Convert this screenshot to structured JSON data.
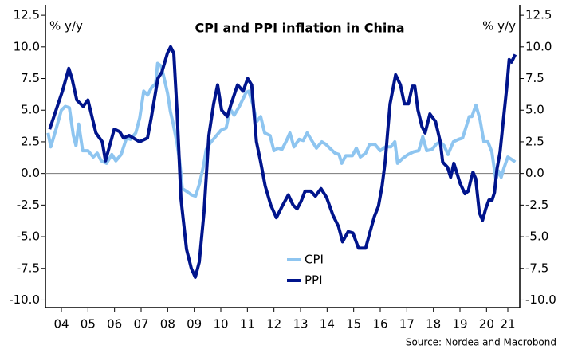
{
  "chart_data": {
    "type": "line",
    "title": "CPI and PPI inflation in China",
    "y_label": "% y/y",
    "y2_label": "% y/y",
    "source": "Source: Nordea and Macrobond",
    "xlim": [
      2003.9,
      2021.75
    ],
    "xticks": [
      {
        "value": 2004.5,
        "label": "04"
      },
      {
        "value": 2005.5,
        "label": "05"
      },
      {
        "value": 2006.5,
        "label": "06"
      },
      {
        "value": 2007.5,
        "label": "07"
      },
      {
        "value": 2008.5,
        "label": "08"
      },
      {
        "value": 2009.5,
        "label": "09"
      },
      {
        "value": 2010.5,
        "label": "10"
      },
      {
        "value": 2011.5,
        "label": "11"
      },
      {
        "value": 2012.5,
        "label": "12"
      },
      {
        "value": 2013.5,
        "label": "13"
      },
      {
        "value": 2014.5,
        "label": "14"
      },
      {
        "value": 2015.5,
        "label": "15"
      },
      {
        "value": 2016.5,
        "label": "16"
      },
      {
        "value": 2017.5,
        "label": "17"
      },
      {
        "value": 2018.5,
        "label": "18"
      },
      {
        "value": 2019.5,
        "label": "19"
      },
      {
        "value": 2020.5,
        "label": "20"
      },
      {
        "value": 2021.3,
        "label": "21"
      }
    ],
    "ylim": [
      -10.6,
      13.2
    ],
    "yticks": [
      12.5,
      {
        "value": 10,
        "label": "10.0"
      },
      7.5,
      {
        "value": 5,
        "label": "5.0"
      },
      2.5,
      {
        "value": 0,
        "label": "0.0"
      },
      -2.5,
      {
        "value": -5,
        "label": "-5.0"
      },
      -7.5,
      {
        "value": -10,
        "label": "-10.0"
      }
    ],
    "y2lim": [
      -10.6,
      13.2
    ],
    "y2ticks": [
      12.5,
      {
        "value": 10,
        "label": "10.0"
      },
      7.5,
      {
        "value": 5,
        "label": "5.0"
      },
      2.5,
      {
        "value": 0,
        "label": "0.0"
      },
      -2.5,
      {
        "value": -5,
        "label": "-5.0"
      },
      -7.5,
      {
        "value": -10,
        "label": "-10.0"
      }
    ],
    "series": [
      {
        "name": "CPI",
        "color": "#8ec5f0",
        "x": [
          2004.0,
          2004.1,
          2004.3,
          2004.5,
          2004.65,
          2004.8,
          2004.95,
          2005.05,
          2005.15,
          2005.3,
          2005.5,
          2005.7,
          2005.85,
          2006.0,
          2006.2,
          2006.4,
          2006.55,
          2006.75,
          2006.95,
          2007.1,
          2007.3,
          2007.45,
          2007.6,
          2007.75,
          2007.9,
          2008.05,
          2008.12,
          2008.25,
          2008.35,
          2008.5,
          2008.6,
          2008.7,
          2008.85,
          2008.95,
          2009.05,
          2009.2,
          2009.4,
          2009.55,
          2009.7,
          2009.85,
          2009.95,
          2010.1,
          2010.3,
          2010.5,
          2010.7,
          2010.85,
          2011.0,
          2011.2,
          2011.45,
          2011.55,
          2011.7,
          2011.85,
          2012.0,
          2012.15,
          2012.35,
          2012.5,
          2012.65,
          2012.8,
          2012.95,
          2013.1,
          2013.25,
          2013.45,
          2013.6,
          2013.75,
          2013.95,
          2014.1,
          2014.3,
          2014.45,
          2014.6,
          2014.8,
          2014.95,
          2015.05,
          2015.2,
          2015.45,
          2015.6,
          2015.75,
          2015.95,
          2016.1,
          2016.3,
          2016.5,
          2016.7,
          2016.9,
          2017.05,
          2017.15,
          2017.35,
          2017.55,
          2017.75,
          2017.95,
          2018.1,
          2018.25,
          2018.45,
          2018.6,
          2018.75,
          2018.9,
          2019.05,
          2019.25,
          2019.45,
          2019.6,
          2019.75,
          2019.85,
          2019.95,
          2020.1,
          2020.25,
          2020.4,
          2020.55,
          2020.7,
          2020.85,
          2020.95,
          2021.05,
          2021.15,
          2021.3,
          2021.45,
          2021.58
        ],
        "values": [
          3.2,
          2.1,
          3.5,
          5.0,
          5.3,
          5.2,
          3.0,
          2.2,
          3.9,
          1.8,
          1.8,
          1.3,
          1.6,
          1.0,
          0.8,
          1.5,
          1.0,
          1.5,
          2.8,
          2.7,
          3.2,
          4.4,
          6.5,
          6.2,
          6.8,
          7.1,
          8.7,
          8.5,
          7.7,
          6.3,
          4.9,
          4.0,
          2.4,
          1.0,
          -1.2,
          -1.4,
          -1.7,
          -1.8,
          -0.8,
          0.6,
          1.9,
          2.4,
          2.9,
          3.4,
          3.6,
          5.1,
          4.6,
          5.3,
          6.4,
          6.5,
          5.5,
          4.1,
          4.5,
          3.2,
          3.0,
          1.8,
          2.0,
          1.9,
          2.5,
          3.2,
          2.1,
          2.7,
          2.6,
          3.2,
          2.5,
          2.0,
          2.5,
          2.3,
          2.0,
          1.6,
          1.5,
          0.8,
          1.4,
          1.4,
          2.0,
          1.3,
          1.6,
          2.3,
          2.3,
          1.8,
          2.1,
          2.1,
          2.5,
          0.8,
          1.2,
          1.5,
          1.7,
          1.8,
          2.9,
          1.8,
          1.9,
          2.3,
          2.5,
          2.2,
          1.5,
          2.5,
          2.7,
          2.8,
          3.8,
          4.5,
          4.5,
          5.4,
          4.3,
          2.5,
          2.5,
          1.7,
          -0.5,
          0.2,
          -0.3,
          0.4,
          1.3,
          1.1,
          0.9
        ]
      },
      {
        "name": "PPI",
        "color": "#00148c",
        "x": [
          2004.06,
          2004.3,
          2004.54,
          2004.78,
          2004.9,
          2005.08,
          2005.32,
          2005.5,
          2005.8,
          2006.04,
          2006.16,
          2006.49,
          2006.69,
          2006.84,
          2007.05,
          2007.44,
          2007.74,
          2007.89,
          2008.13,
          2008.28,
          2008.49,
          2008.61,
          2008.73,
          2008.85,
          2009.0,
          2009.21,
          2009.39,
          2009.54,
          2009.69,
          2009.87,
          2010.05,
          2010.23,
          2010.38,
          2010.53,
          2010.74,
          2010.89,
          2011.13,
          2011.34,
          2011.51,
          2011.66,
          2011.84,
          2011.99,
          2012.17,
          2012.38,
          2012.59,
          2012.83,
          2013.04,
          2013.22,
          2013.37,
          2013.52,
          2013.67,
          2013.88,
          2014.06,
          2014.27,
          2014.48,
          2014.72,
          2014.93,
          2015.08,
          2015.29,
          2015.47,
          2015.68,
          2015.95,
          2016.13,
          2016.28,
          2016.43,
          2016.57,
          2016.69,
          2016.78,
          2016.87,
          2017.08,
          2017.26,
          2017.41,
          2017.56,
          2017.71,
          2017.8,
          2017.92,
          2018.07,
          2018.19,
          2018.37,
          2018.58,
          2018.67,
          2018.76,
          2018.85,
          2019.03,
          2019.15,
          2019.27,
          2019.39,
          2019.51,
          2019.69,
          2019.81,
          2019.9,
          2019.99,
          2020.09,
          2020.23,
          2020.35,
          2020.47,
          2020.59,
          2020.71,
          2020.8,
          2020.89,
          2021.01,
          2021.14,
          2021.26,
          2021.35,
          2021.44,
          2021.58
        ],
        "values": [
          3.5,
          5.0,
          6.5,
          8.3,
          7.5,
          5.8,
          5.3,
          5.8,
          3.2,
          2.5,
          1.0,
          3.5,
          3.3,
          2.8,
          3.0,
          2.5,
          2.8,
          4.5,
          7.5,
          8.0,
          9.5,
          10.0,
          9.5,
          5.0,
          -2.0,
          -6.0,
          -7.5,
          -8.2,
          -7.0,
          -3.0,
          3.0,
          5.5,
          7.0,
          5.0,
          4.5,
          5.5,
          7.0,
          6.5,
          7.5,
          7.0,
          2.5,
          1.0,
          -1.0,
          -2.5,
          -3.5,
          -2.5,
          -1.7,
          -2.5,
          -2.8,
          -2.2,
          -1.4,
          -1.4,
          -1.8,
          -1.2,
          -1.9,
          -3.3,
          -4.2,
          -5.4,
          -4.6,
          -4.7,
          -5.9,
          -5.9,
          -4.5,
          -3.4,
          -2.6,
          -1.0,
          1.0,
          3.3,
          5.5,
          7.8,
          7.0,
          5.5,
          5.5,
          6.9,
          6.9,
          5.0,
          3.7,
          3.2,
          4.7,
          4.1,
          3.3,
          2.5,
          0.9,
          0.5,
          -0.3,
          0.8,
          0.0,
          -0.8,
          -1.6,
          -1.4,
          -0.6,
          0.1,
          -0.4,
          -3.1,
          -3.7,
          -2.8,
          -2.1,
          -2.1,
          -1.5,
          0.3,
          1.7,
          4.4,
          6.8,
          9.0,
          8.8,
          9.4
        ]
      }
    ],
    "legend": "lower center",
    "grid": false
  }
}
